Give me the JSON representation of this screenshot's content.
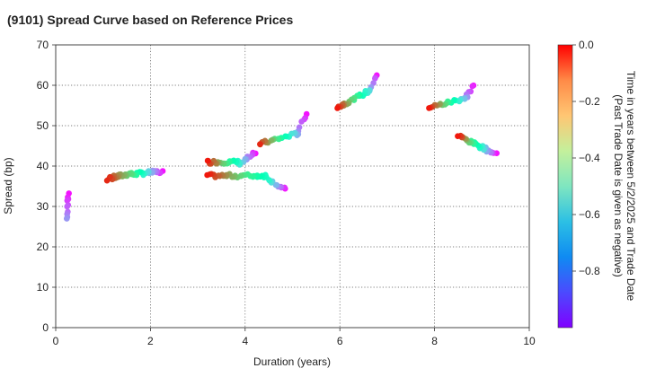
{
  "chart_data": {
    "type": "scatter",
    "title": "(9101)   Spread Curve based on Reference Prices",
    "xlabel": "Duration (years)",
    "ylabel": "Spread (bp)",
    "xlim": [
      0,
      10
    ],
    "ylim": [
      0,
      70
    ],
    "xticks": [
      0,
      2,
      4,
      6,
      8,
      10
    ],
    "yticks": [
      0,
      10,
      20,
      30,
      40,
      50,
      60,
      70
    ],
    "grid": true,
    "colorbar": {
      "label_line1": "Time in years between 5/2/2025 and Trade Date",
      "label_line2": "(Past Trade Date is given as negative)",
      "range": [
        -1.0,
        0.0
      ],
      "ticks": [
        0.0,
        -0.2,
        -0.4,
        -0.6,
        -0.8
      ],
      "tick_labels": [
        "0.0",
        "−0.2",
        "−0.4",
        "−0.6",
        "−0.8"
      ],
      "colormap": "rainbow"
    },
    "series": [
      {
        "x0": 0.28,
        "y0": 33.2,
        "x1": 0.23,
        "y1": 27.0,
        "t0": -0.98,
        "t1": -0.8,
        "n": 10
      },
      {
        "x0": 1.1,
        "y0": 36.8,
        "x1": 1.6,
        "y1": 38.2,
        "t0": -0.05,
        "t1": -0.35,
        "n": 22
      },
      {
        "x0": 1.6,
        "y0": 38.0,
        "x1": 2.25,
        "y1": 38.6,
        "t0": -0.35,
        "t1": -0.98,
        "n": 22
      },
      {
        "x0": 3.2,
        "y0": 41.0,
        "x1": 3.9,
        "y1": 41.0,
        "t0": -0.03,
        "t1": -0.62,
        "n": 22
      },
      {
        "x0": 3.9,
        "y0": 40.5,
        "x1": 4.2,
        "y1": 43.2,
        "t0": -0.65,
        "t1": -0.98,
        "n": 10
      },
      {
        "x0": 3.2,
        "y0": 37.6,
        "x1": 4.45,
        "y1": 37.6,
        "t0": -0.03,
        "t1": -0.55,
        "n": 30
      },
      {
        "x0": 4.45,
        "y0": 37.2,
        "x1": 4.85,
        "y1": 34.0,
        "t0": -0.55,
        "t1": -0.98,
        "n": 12
      },
      {
        "x0": 4.3,
        "y0": 45.5,
        "x1": 5.1,
        "y1": 48.0,
        "t0": -0.05,
        "t1": -0.75,
        "n": 22
      },
      {
        "x0": 5.1,
        "y0": 48.0,
        "x1": 5.3,
        "y1": 53.2,
        "t0": -0.78,
        "t1": -0.98,
        "n": 7
      },
      {
        "x0": 5.95,
        "y0": 54.5,
        "x1": 6.65,
        "y1": 58.8,
        "t0": -0.03,
        "t1": -0.7,
        "n": 22
      },
      {
        "x0": 6.65,
        "y0": 59.0,
        "x1": 6.8,
        "y1": 62.8,
        "t0": -0.75,
        "t1": -0.98,
        "n": 6
      },
      {
        "x0": 7.9,
        "y0": 54.5,
        "x1": 8.7,
        "y1": 57.0,
        "t0": -0.03,
        "t1": -0.8,
        "n": 22
      },
      {
        "x0": 8.7,
        "y0": 57.5,
        "x1": 8.8,
        "y1": 60.2,
        "t0": -0.85,
        "t1": -0.98,
        "n": 5
      },
      {
        "x0": 8.5,
        "y0": 47.5,
        "x1": 9.3,
        "y1": 43.0,
        "t0": -0.03,
        "t1": -0.98,
        "n": 28
      }
    ]
  }
}
